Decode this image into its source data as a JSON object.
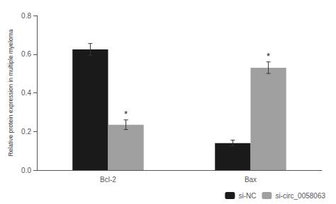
{
  "chart_data": {
    "type": "bar",
    "categories": [
      "Bcl-2",
      "Bax"
    ],
    "series": [
      {
        "name": "si-NC",
        "color": "#1a1a1a",
        "values": [
          0.625,
          0.14
        ],
        "errors": [
          0.03,
          0.015
        ]
      },
      {
        "name": "si-circ_0058063",
        "color": "#a0a0a0",
        "values": [
          0.235,
          0.53
        ],
        "errors": [
          0.025,
          0.03
        ]
      }
    ],
    "ylabel": "Relative protein expression in multiple myeloma",
    "ylim": [
      0,
      0.8
    ],
    "yticks": [
      {
        "value": 0,
        "label": "0.0"
      },
      0.2,
      0.4,
      0.6,
      0.8
    ],
    "annotations": [
      {
        "text": "*",
        "category": "Bcl-2",
        "series": "si-circ_0058063"
      },
      {
        "text": "*",
        "category": "Bax",
        "series": "si-circ_0058063"
      }
    ],
    "legend": "lower right",
    "grid": false
  }
}
